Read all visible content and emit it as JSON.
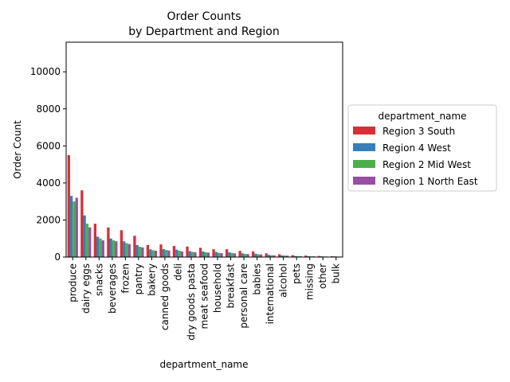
{
  "chart_data": {
    "type": "bar",
    "title_line1": "Order Counts",
    "title_line2": "by Department and Region",
    "xlabel": "department_name",
    "ylabel": "Order Count",
    "ylim": [
      0,
      11600
    ],
    "yticks": [
      0,
      2000,
      4000,
      6000,
      8000,
      10000
    ],
    "legend": {
      "title": "department_name",
      "placement": "center-right outside"
    },
    "categories": [
      "produce",
      "dairy eggs",
      "snacks",
      "beverages",
      "frozen",
      "pantry",
      "bakery",
      "canned goods",
      "deli",
      "dry goods pasta",
      "meat seafood",
      "household",
      "breakfast",
      "personal care",
      "babies",
      "international",
      "alcohol",
      "pets",
      "missing",
      "other",
      "bulk"
    ],
    "series": [
      {
        "name": "Region 3 South",
        "color": "#d62f36",
        "values": [
          5500,
          3600,
          1800,
          1600,
          1450,
          1150,
          650,
          680,
          600,
          570,
          500,
          420,
          420,
          330,
          300,
          200,
          150,
          100,
          80,
          60,
          50
        ]
      },
      {
        "name": "Region 4 West",
        "color": "#377eb8",
        "values": [
          3300,
          2250,
          1100,
          1000,
          850,
          650,
          420,
          430,
          400,
          320,
          300,
          270,
          260,
          200,
          180,
          120,
          90,
          60,
          50,
          40,
          35
        ]
      },
      {
        "name": "Region 2 Mid West",
        "color": "#4daf4a",
        "values": [
          3000,
          1800,
          1000,
          900,
          750,
          560,
          370,
          380,
          340,
          280,
          260,
          230,
          220,
          170,
          150,
          100,
          80,
          50,
          40,
          30,
          30
        ]
      },
      {
        "name": "Region 1 North East",
        "color": "#984ea3",
        "values": [
          3200,
          1600,
          900,
          850,
          700,
          520,
          340,
          350,
          300,
          260,
          240,
          210,
          200,
          160,
          140,
          95,
          75,
          45,
          40,
          30,
          25
        ]
      }
    ]
  }
}
